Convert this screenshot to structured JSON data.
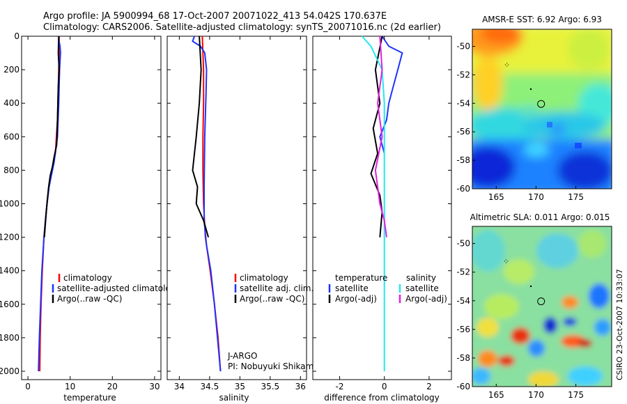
{
  "header": {
    "line1": "Argo profile: JA 5900994_68 17-Oct-2007 20071022_413 54.042S 170.637E",
    "line2": "Climatology: CARS2006. Satellite-adjusted climatology: synTS_20071016.nc (2d earlier)"
  },
  "colors": {
    "climatology": "#ff0000",
    "satellite": "#1e32ff",
    "argo": "#000000",
    "satellite_salinity": "#22e8f0",
    "argo_salinity": "#e020e0"
  },
  "chart_data": [
    {
      "type": "line",
      "panel": "temperature",
      "xlabel": "temperature",
      "ylabel": "",
      "xlim": [
        -1.5,
        31.5
      ],
      "ylim": [
        0,
        2050
      ],
      "y_inverted": true,
      "xticks": [
        0,
        10,
        20,
        30
      ],
      "yticks": [
        0,
        200,
        400,
        600,
        800,
        1000,
        1200,
        1400,
        1600,
        1800,
        2000
      ],
      "legend": [
        "climatology",
        "satellite-adjusted climatology",
        "Argo(..raw -QC)"
      ],
      "series": [
        {
          "name": "climatology",
          "color": "#ff0000",
          "points": [
            [
              7.4,
              0
            ],
            [
              7.4,
              100
            ],
            [
              7.2,
              300
            ],
            [
              7.0,
              500
            ],
            [
              6.5,
              700
            ],
            [
              5.2,
              850
            ],
            [
              4.5,
              1000
            ],
            [
              3.8,
              1200
            ],
            [
              3.4,
              1400
            ],
            [
              3.1,
              1600
            ],
            [
              2.9,
              1800
            ],
            [
              2.8,
              2000
            ]
          ]
        },
        {
          "name": "satellite-adjusted climatology",
          "color": "#1e32ff",
          "points": [
            [
              7.4,
              0
            ],
            [
              7.3,
              20
            ],
            [
              7.6,
              60
            ],
            [
              7.7,
              100
            ],
            [
              7.5,
              200
            ],
            [
              7.3,
              400
            ],
            [
              7.0,
              600
            ],
            [
              6.2,
              750
            ],
            [
              5.0,
              900
            ],
            [
              4.3,
              1050
            ],
            [
              3.8,
              1200
            ],
            [
              3.3,
              1400
            ],
            [
              3.0,
              1600
            ],
            [
              2.7,
              1800
            ],
            [
              2.5,
              2000
            ]
          ]
        },
        {
          "name": "Argo(..raw -QC)",
          "color": "#000000",
          "points": [
            [
              7.3,
              0
            ],
            [
              7.2,
              100
            ],
            [
              7.4,
              200
            ],
            [
              7.2,
              300
            ],
            [
              7.0,
              500
            ],
            [
              6.8,
              650
            ],
            [
              6.2,
              720
            ],
            [
              5.8,
              780
            ],
            [
              5.3,
              830
            ],
            [
              4.9,
              900
            ],
            [
              4.5,
              1000
            ],
            [
              4.2,
              1100
            ],
            [
              3.9,
              1200
            ]
          ]
        }
      ]
    },
    {
      "type": "line",
      "panel": "salinity",
      "xlabel": "salinity",
      "xlim": [
        33.8,
        36.1
      ],
      "ylim": [
        0,
        2050
      ],
      "y_inverted": true,
      "xticks": [
        34,
        34.5,
        35,
        35.5,
        36
      ],
      "xticklabels": [
        "34",
        "34.5",
        "35",
        "35.5",
        "36"
      ],
      "legend": [
        "climatology",
        "satellite adj. clim.",
        "Argo(..raw -QC)"
      ],
      "annotations": [
        "J-ARGO",
        "PI: Nobuyuki Shikama"
      ],
      "series": [
        {
          "name": "climatology",
          "color": "#ff0000",
          "points": [
            [
              34.38,
              0
            ],
            [
              34.4,
              200
            ],
            [
              34.4,
              400
            ],
            [
              34.39,
              600
            ],
            [
              34.39,
              800
            ],
            [
              34.4,
              1000
            ],
            [
              34.43,
              1200
            ],
            [
              34.51,
              1400
            ],
            [
              34.58,
              1600
            ],
            [
              34.64,
              1800
            ],
            [
              34.68,
              2000
            ]
          ]
        },
        {
          "name": "satellite adj. clim.",
          "color": "#1e32ff",
          "points": [
            [
              34.25,
              0
            ],
            [
              34.22,
              30
            ],
            [
              34.35,
              60
            ],
            [
              34.42,
              100
            ],
            [
              34.45,
              200
            ],
            [
              34.44,
              350
            ],
            [
              34.42,
              600
            ],
            [
              34.41,
              900
            ],
            [
              34.41,
              1100
            ],
            [
              34.45,
              1250
            ],
            [
              34.52,
              1400
            ],
            [
              34.58,
              1600
            ],
            [
              34.63,
              1800
            ],
            [
              34.68,
              2000
            ]
          ]
        },
        {
          "name": "Argo(..raw -QC)",
          "color": "#000000",
          "points": [
            [
              34.33,
              0
            ],
            [
              34.36,
              200
            ],
            [
              34.33,
              400
            ],
            [
              34.28,
              600
            ],
            [
              34.22,
              800
            ],
            [
              34.3,
              900
            ],
            [
              34.28,
              1000
            ],
            [
              34.4,
              1100
            ],
            [
              34.48,
              1200
            ]
          ]
        }
      ]
    },
    {
      "type": "line",
      "panel": "difference",
      "xlabel": "difference from climatology",
      "xlim": [
        -3.2,
        3.0
      ],
      "ylim": [
        0,
        2050
      ],
      "y_inverted": true,
      "xticks": [
        -2,
        0,
        2
      ],
      "legend_temperature": {
        "heading": "temperature",
        "items": [
          "satellite",
          "Argo(-adj)"
        ]
      },
      "legend_salinity": {
        "heading": "salinity",
        "items": [
          "satellite",
          "Argo(-adj)"
        ]
      },
      "series": [
        {
          "name": "temperature satellite",
          "color": "#1e32ff",
          "points": [
            [
              -0.1,
              0
            ],
            [
              0.2,
              60
            ],
            [
              0.8,
              100
            ],
            [
              0.6,
              200
            ],
            [
              0.4,
              300
            ],
            [
              0.2,
              400
            ],
            [
              0.1,
              500
            ],
            [
              -0.2,
              600
            ],
            [
              0.0,
              700
            ]
          ]
        },
        {
          "name": "temperature Argo(-adj)",
          "color": "#000000",
          "points": [
            [
              -0.1,
              0
            ],
            [
              -0.4,
              200
            ],
            [
              -0.2,
              400
            ],
            [
              -0.5,
              550
            ],
            [
              -0.3,
              700
            ],
            [
              -0.6,
              820
            ],
            [
              -0.2,
              950
            ],
            [
              -0.1,
              1050
            ],
            [
              -0.2,
              1200
            ]
          ]
        },
        {
          "name": "salinity satellite",
          "color": "#22e8f0",
          "points": [
            [
              -1.0,
              0
            ],
            [
              -0.6,
              60
            ],
            [
              -0.1,
              200
            ],
            [
              0.0,
              400
            ],
            [
              0.0,
              800
            ],
            [
              0.0,
              1200
            ],
            [
              0.0,
              1600
            ],
            [
              0.0,
              2000
            ]
          ]
        },
        {
          "name": "salinity Argo(-adj)",
          "color": "#e020e0",
          "points": [
            [
              -0.2,
              0
            ],
            [
              -0.1,
              200
            ],
            [
              -0.3,
              400
            ],
            [
              -0.1,
              600
            ],
            [
              -0.4,
              800
            ],
            [
              -0.2,
              1000
            ],
            [
              0.0,
              1100
            ],
            [
              0.1,
              1200
            ]
          ]
        }
      ]
    },
    {
      "type": "heatmap",
      "title": "AMSR-E SST: 6.92  Argo: 6.93",
      "xlim": [
        162,
        179.5
      ],
      "ylim": [
        -60,
        -48.8
      ],
      "xticks": [
        165,
        170,
        175
      ],
      "yticks": [
        -50,
        -52,
        -54,
        -56,
        -58,
        -60
      ],
      "marker": {
        "lon": 170.637,
        "lat": -54.042
      }
    },
    {
      "type": "heatmap",
      "title": "Altimetric SLA: 0.011  Argo: 0.015",
      "xlim": [
        162,
        179.5
      ],
      "ylim": [
        -60,
        -48.8
      ],
      "xticks": [
        165,
        170,
        175
      ],
      "yticks": [
        -50,
        -52,
        -54,
        -56,
        -58,
        -60
      ],
      "marker": {
        "lon": 170.637,
        "lat": -54.042
      }
    }
  ],
  "side_label": "CSIRO 23-Oct-2007 10:33:07"
}
